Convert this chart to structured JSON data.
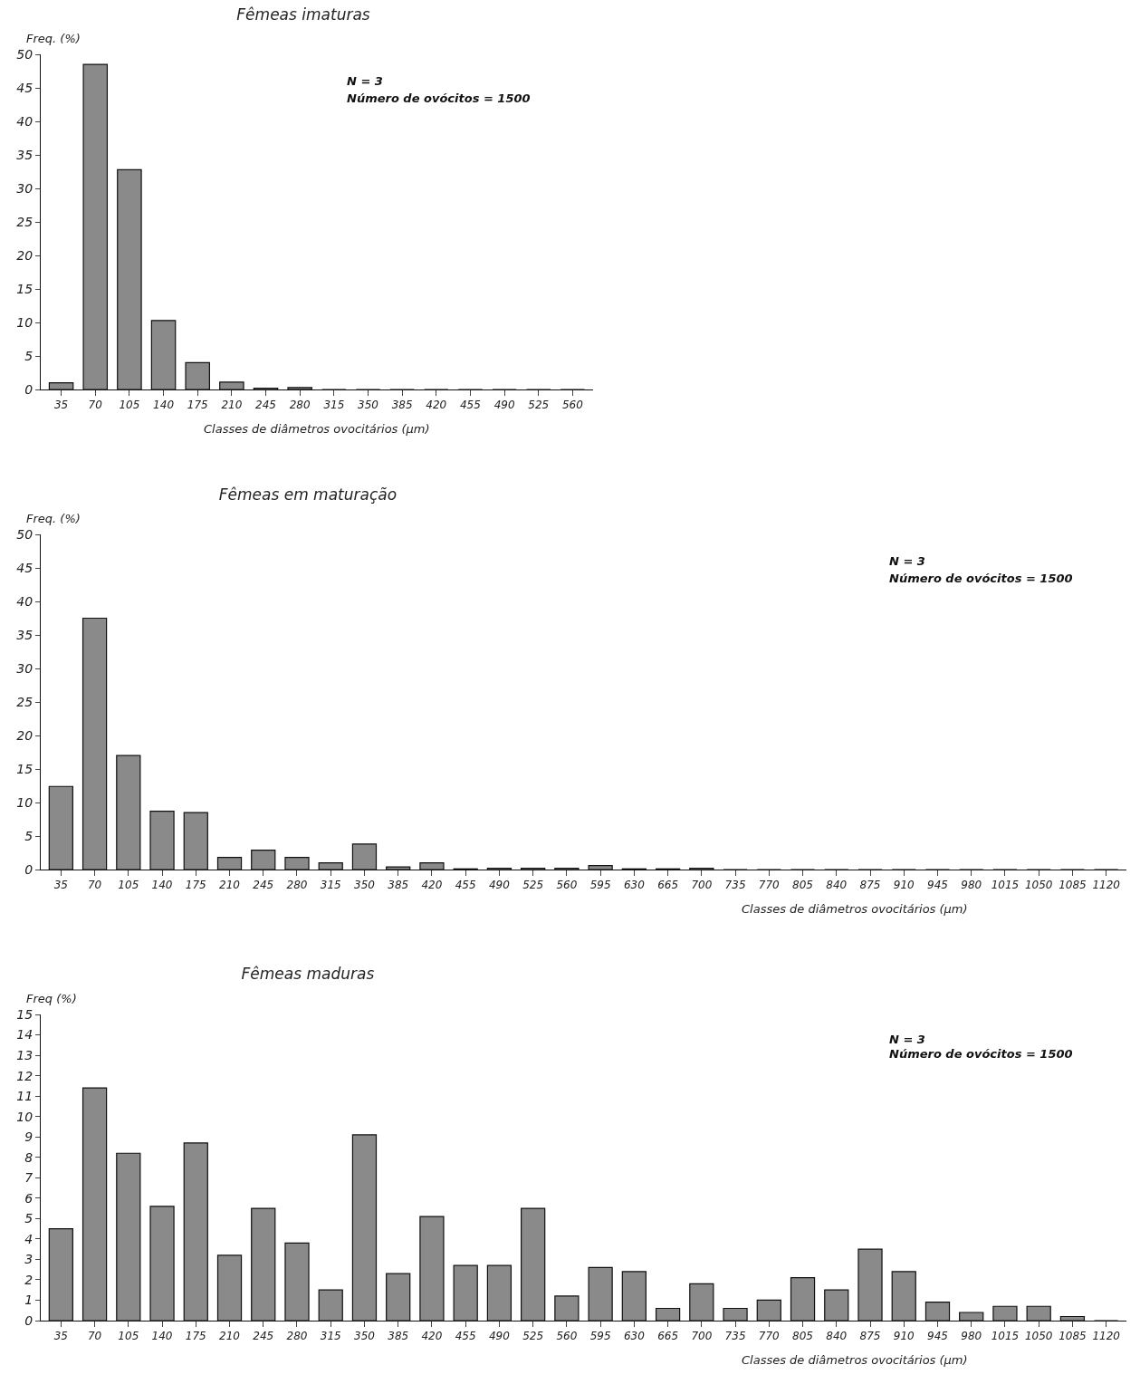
{
  "chart_data": [
    {
      "type": "bar",
      "title": "Fêmeas imaturas",
      "xlabel": "Classes de diâmetros ovocitários (µm)",
      "ylabel": "Freq. (%)",
      "categories": [
        "35",
        "70",
        "105",
        "140",
        "175",
        "210",
        "245",
        "280",
        "315",
        "350",
        "385",
        "420",
        "455",
        "490",
        "525",
        "560"
      ],
      "values": [
        1,
        48.5,
        32.8,
        10.3,
        4,
        1.1,
        0.2,
        0.3,
        0,
        0,
        0,
        0,
        0,
        0,
        0,
        0
      ],
      "color": "#8a8a8a",
      "ylim": [
        0,
        50
      ],
      "yticks": [
        0,
        5,
        10,
        15,
        20,
        25,
        30,
        35,
        40,
        45,
        50
      ],
      "grid": false,
      "annotations": [
        "N = 3",
        "Número de ovócitos = 1500"
      ]
    },
    {
      "type": "bar",
      "title": "Fêmeas em maturação",
      "xlabel": "Classes de diâmetros ovocitários (µm)",
      "ylabel": "Freq. (%)",
      "categories": [
        "35",
        "70",
        "105",
        "140",
        "175",
        "210",
        "245",
        "280",
        "315",
        "350",
        "385",
        "420",
        "455",
        "490",
        "525",
        "560",
        "595",
        "630",
        "665",
        "700",
        "735",
        "770",
        "805",
        "840",
        "875",
        "910",
        "945",
        "980",
        "1015",
        "1050",
        "1085",
        "1120"
      ],
      "values": [
        12.4,
        37.5,
        17,
        8.7,
        8.5,
        1.8,
        2.9,
        1.8,
        1,
        3.8,
        0.4,
        1,
        0.1,
        0.2,
        0.2,
        0.2,
        0.6,
        0.1,
        0.1,
        0.2,
        0,
        0,
        0,
        0,
        0,
        0,
        0,
        0,
        0,
        0,
        0,
        0
      ],
      "color": "#8a8a8a",
      "ylim": [
        0,
        50
      ],
      "yticks": [
        0,
        5,
        10,
        15,
        20,
        25,
        30,
        35,
        40,
        45,
        50
      ],
      "grid": false,
      "annotations": [
        "N = 3",
        "Número de ovócitos = 1500"
      ]
    },
    {
      "type": "bar",
      "title": "Fêmeas maduras",
      "xlabel": "Classes de diâmetros ovocitários (µm)",
      "ylabel": "Freq (%)",
      "categories": [
        "35",
        "70",
        "105",
        "140",
        "175",
        "210",
        "245",
        "280",
        "315",
        "350",
        "385",
        "420",
        "455",
        "490",
        "525",
        "560",
        "595",
        "630",
        "665",
        "700",
        "735",
        "770",
        "805",
        "840",
        "875",
        "910",
        "945",
        "980",
        "1015",
        "1050",
        "1085",
        "1120"
      ],
      "values": [
        4.5,
        11.4,
        8.2,
        5.6,
        8.7,
        3.2,
        5.5,
        3.8,
        1.5,
        9.1,
        2.3,
        5.1,
        2.7,
        2.7,
        5.5,
        1.2,
        2.6,
        2.4,
        0.6,
        1.8,
        0.6,
        1.0,
        2.1,
        1.5,
        3.5,
        2.4,
        0.9,
        0.4,
        0.7,
        0.7,
        0.2,
        0
      ],
      "color": "#8a8a8a",
      "ylim": [
        0,
        15
      ],
      "yticks": [
        0,
        1,
        2,
        3,
        4,
        5,
        6,
        7,
        8,
        9,
        10,
        11,
        12,
        13,
        14,
        15
      ],
      "grid": false,
      "annotations": [
        "N = 3",
        "Número de ovócitos = 1500"
      ]
    }
  ]
}
